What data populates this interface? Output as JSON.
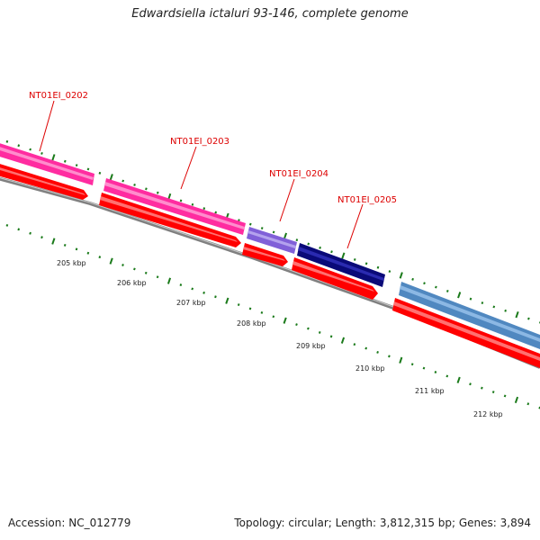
{
  "header": {
    "title": "Edwardsiella ictaluri 93-146, complete genome"
  },
  "footer": {
    "accession": "Accession: NC_012779",
    "summary": "Topology: circular; Length: 3,812,315 bp; Genes: 3,894"
  },
  "map": {
    "kbp_labels": [
      "205 kbp",
      "206 kbp",
      "207 kbp",
      "208 kbp",
      "209 kbp",
      "210 kbp",
      "211 kbp",
      "212 kbp"
    ],
    "gene_labels": [
      "NT01EI_0202",
      "NT01EI_0203",
      "NT01EI_0204",
      "NT01EI_0205"
    ],
    "colors": {
      "label_red": "#dd0000",
      "tick_green": "#1a7a1a",
      "backbone_gray": "#808080",
      "gene_pink": "#ff2ca0",
      "gene_purple": "#8060d8",
      "gene_navy": "#0a0a78",
      "gene_steelblue": "#5088c0",
      "cds_red": "#ff0000"
    }
  }
}
